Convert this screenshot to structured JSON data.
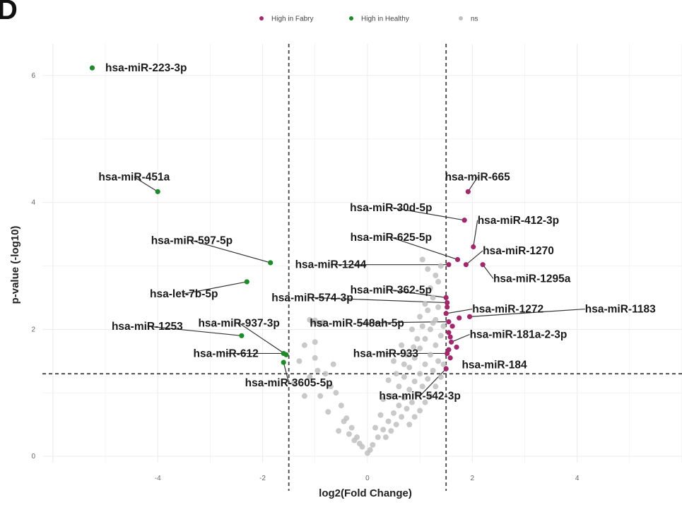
{
  "panel_letter": "D",
  "colors": {
    "high_fabry": "#a1286a",
    "high_healthy": "#1f8a2a",
    "ns": "#c0c0c0",
    "grid": "#ececec",
    "threshold": "#444444"
  },
  "chart_data": {
    "type": "scatter",
    "subtype": "volcano",
    "xlabel": "log2(Fold Change)",
    "ylabel": "p-value (-log10)",
    "xlim": [
      -6.2,
      6.0
    ],
    "ylim": [
      -0.1,
      6.5
    ],
    "x_ticks": [
      -4,
      -2,
      0,
      2,
      4
    ],
    "x_tick_labels": [
      "-4",
      "-2",
      "0",
      "2",
      "4"
    ],
    "y_ticks": [
      0,
      2,
      4,
      6
    ],
    "y_tick_labels": [
      "0",
      "2",
      "4",
      "6"
    ],
    "grid": true,
    "legend_position": "top-center",
    "thresholds": {
      "log2fc": [
        -1.5,
        1.5
      ],
      "neg_log10_p": 1.3
    },
    "legend": [
      {
        "label": "High in Fabry",
        "color": "#a1286a"
      },
      {
        "label": "High in Healthy",
        "color": "#1f8a2a"
      },
      {
        "label": "ns",
        "color": "#c0c0c0"
      }
    ],
    "series": [
      {
        "name": "High in Healthy",
        "color": "#1f8a2a",
        "points": [
          {
            "x": -5.25,
            "y": 6.12,
            "label": "hsa-miR-223-3p"
          },
          {
            "x": -4.0,
            "y": 4.17,
            "label": "hsa-miR-451a"
          },
          {
            "x": -1.85,
            "y": 3.05,
            "label": "hsa-miR-597-5p"
          },
          {
            "x": -2.3,
            "y": 2.75,
            "label": "hsa-let-7b-5p"
          },
          {
            "x": -2.4,
            "y": 1.9,
            "label": "hsa-miR-1253"
          },
          {
            "x": -1.6,
            "y": 1.62,
            "label": "hsa-miR-612"
          },
          {
            "x": -1.55,
            "y": 1.6,
            "label": "hsa-miR-937-3p"
          },
          {
            "x": -1.6,
            "y": 1.48,
            "label": "hsa-miR-3605-5p"
          }
        ]
      },
      {
        "name": "High in Fabry",
        "color": "#a1286a",
        "points": [
          {
            "x": 1.92,
            "y": 4.17,
            "label": "hsa-miR-665"
          },
          {
            "x": 1.85,
            "y": 3.72,
            "label": "hsa-miR-30d-5p"
          },
          {
            "x": 2.02,
            "y": 3.3,
            "label": "hsa-miR-412-3p"
          },
          {
            "x": 1.72,
            "y": 3.1,
            "label": "hsa-miR-625-5p"
          },
          {
            "x": 1.88,
            "y": 3.02,
            "label": "hsa-miR-1270"
          },
          {
            "x": 2.2,
            "y": 3.02,
            "label": "hsa-miR-1295a"
          },
          {
            "x": 1.55,
            "y": 3.02,
            "label": "hsa-miR-1244"
          },
          {
            "x": 1.5,
            "y": 2.5,
            "label": "hsa-miR-362-5p"
          },
          {
            "x": 1.52,
            "y": 2.42,
            "label": "hsa-miR-574-3p"
          },
          {
            "x": 1.5,
            "y": 2.25,
            "label": "hsa-miR-1272"
          },
          {
            "x": 1.95,
            "y": 2.2,
            "label": "hsa-miR-1183"
          },
          {
            "x": 1.55,
            "y": 2.12,
            "label": "hsa-miR-548ah-5p"
          },
          {
            "x": 1.6,
            "y": 1.8,
            "label": "hsa-miR-181a-2-3p"
          },
          {
            "x": 1.52,
            "y": 1.62,
            "label": "hsa-miR-933"
          },
          {
            "x": 1.58,
            "y": 1.55,
            "label": "hsa-miR-184"
          },
          {
            "x": 1.5,
            "y": 1.38,
            "label": "hsa-miR-542-3p"
          },
          {
            "x": 1.62,
            "y": 2.05,
            "label": ""
          },
          {
            "x": 1.55,
            "y": 1.95,
            "label": ""
          },
          {
            "x": 1.7,
            "y": 1.72,
            "label": ""
          },
          {
            "x": 1.52,
            "y": 2.35,
            "label": ""
          },
          {
            "x": 1.58,
            "y": 1.88,
            "label": ""
          },
          {
            "x": 1.75,
            "y": 2.18,
            "label": ""
          },
          {
            "x": 1.55,
            "y": 1.68,
            "label": ""
          }
        ]
      },
      {
        "name": "ns",
        "color": "#c0c0c0",
        "points": [
          {
            "x": -1.05,
            "y": 2.12
          },
          {
            "x": -0.95,
            "y": 2.1
          },
          {
            "x": -1.1,
            "y": 2.15
          },
          {
            "x": -0.9,
            "y": 2.08
          },
          {
            "x": -1.0,
            "y": 2.14
          },
          {
            "x": -0.85,
            "y": 2.11
          },
          {
            "x": -1.2,
            "y": 1.75
          },
          {
            "x": -1.0,
            "y": 1.55
          },
          {
            "x": -0.8,
            "y": 1.3
          },
          {
            "x": -0.6,
            "y": 1.0
          },
          {
            "x": -0.5,
            "y": 0.8
          },
          {
            "x": -0.4,
            "y": 0.6
          },
          {
            "x": -0.3,
            "y": 0.45
          },
          {
            "x": -0.2,
            "y": 0.3
          },
          {
            "x": -0.1,
            "y": 0.15
          },
          {
            "x": 0.0,
            "y": 0.05
          },
          {
            "x": 0.05,
            "y": 0.1
          },
          {
            "x": -0.15,
            "y": 0.2
          },
          {
            "x": -0.35,
            "y": 0.35
          },
          {
            "x": -0.7,
            "y": 1.1
          },
          {
            "x": -1.3,
            "y": 1.5
          },
          {
            "x": -1.1,
            "y": 1.25
          },
          {
            "x": -0.9,
            "y": 0.95
          },
          {
            "x": -0.45,
            "y": 0.55
          },
          {
            "x": -0.25,
            "y": 0.25
          },
          {
            "x": -1.4,
            "y": 1.15
          },
          {
            "x": -1.2,
            "y": 0.95
          },
          {
            "x": -0.75,
            "y": 0.7
          },
          {
            "x": -0.55,
            "y": 0.4
          },
          {
            "x": -1.0,
            "y": 1.8
          },
          {
            "x": -0.65,
            "y": 1.45
          },
          {
            "x": -0.95,
            "y": 1.35
          },
          {
            "x": 0.1,
            "y": 0.18
          },
          {
            "x": 0.2,
            "y": 0.3
          },
          {
            "x": 0.3,
            "y": 0.42
          },
          {
            "x": 0.4,
            "y": 0.55
          },
          {
            "x": 0.5,
            "y": 0.68
          },
          {
            "x": 0.6,
            "y": 0.8
          },
          {
            "x": 0.7,
            "y": 0.92
          },
          {
            "x": 0.8,
            "y": 1.05
          },
          {
            "x": 0.9,
            "y": 1.18
          },
          {
            "x": 1.0,
            "y": 1.3
          },
          {
            "x": 1.1,
            "y": 1.45
          },
          {
            "x": 1.2,
            "y": 1.6
          },
          {
            "x": 1.3,
            "y": 1.75
          },
          {
            "x": 1.4,
            "y": 1.9
          },
          {
            "x": 0.35,
            "y": 0.3
          },
          {
            "x": 0.45,
            "y": 0.4
          },
          {
            "x": 0.55,
            "y": 0.5
          },
          {
            "x": 0.65,
            "y": 0.62
          },
          {
            "x": 0.75,
            "y": 0.75
          },
          {
            "x": 0.85,
            "y": 0.85
          },
          {
            "x": 0.95,
            "y": 0.98
          },
          {
            "x": 1.05,
            "y": 1.1
          },
          {
            "x": 1.15,
            "y": 1.22
          },
          {
            "x": 1.25,
            "y": 1.35
          },
          {
            "x": 1.35,
            "y": 1.5
          },
          {
            "x": 0.6,
            "y": 1.1
          },
          {
            "x": 0.7,
            "y": 1.25
          },
          {
            "x": 0.8,
            "y": 1.4
          },
          {
            "x": 0.9,
            "y": 1.55
          },
          {
            "x": 1.0,
            "y": 1.7
          },
          {
            "x": 1.1,
            "y": 1.85
          },
          {
            "x": 1.2,
            "y": 2.0
          },
          {
            "x": 1.3,
            "y": 2.15
          },
          {
            "x": 0.55,
            "y": 1.3
          },
          {
            "x": 0.75,
            "y": 1.6
          },
          {
            "x": 0.95,
            "y": 1.85
          },
          {
            "x": 1.05,
            "y": 2.05
          },
          {
            "x": 1.15,
            "y": 2.3
          },
          {
            "x": 1.25,
            "y": 2.5
          },
          {
            "x": 1.0,
            "y": 2.2
          },
          {
            "x": 1.1,
            "y": 2.4
          },
          {
            "x": 1.2,
            "y": 2.65
          },
          {
            "x": 1.3,
            "y": 2.85
          },
          {
            "x": 1.4,
            "y": 3.0
          },
          {
            "x": 1.05,
            "y": 3.1
          },
          {
            "x": 1.15,
            "y": 2.95
          },
          {
            "x": 1.35,
            "y": 2.75
          },
          {
            "x": 0.85,
            "y": 2.0
          },
          {
            "x": 0.65,
            "y": 1.75
          },
          {
            "x": 0.5,
            "y": 1.5
          },
          {
            "x": 0.4,
            "y": 1.2
          },
          {
            "x": 0.3,
            "y": 0.9
          },
          {
            "x": 0.25,
            "y": 0.65
          },
          {
            "x": 0.15,
            "y": 0.45
          },
          {
            "x": 1.45,
            "y": 2.05
          },
          {
            "x": 1.45,
            "y": 1.45
          },
          {
            "x": 1.4,
            "y": 1.25
          },
          {
            "x": 1.3,
            "y": 1.1
          },
          {
            "x": 1.2,
            "y": 0.95
          },
          {
            "x": 1.1,
            "y": 0.85
          },
          {
            "x": 1.0,
            "y": 0.72
          },
          {
            "x": 0.9,
            "y": 0.62
          },
          {
            "x": 0.8,
            "y": 0.5
          },
          {
            "x": 1.35,
            "y": 2.35
          },
          {
            "x": 1.25,
            "y": 2.1
          },
          {
            "x": 0.45,
            "y": 0.95
          },
          {
            "x": 0.7,
            "y": 1.45
          },
          {
            "x": 0.88,
            "y": 1.72
          }
        ]
      }
    ],
    "labels": [
      {
        "text": "hsa-miR-223-3p",
        "point": [
          -5.25,
          6.12
        ],
        "at": [
          -5.0,
          6.12
        ],
        "anchor": "start"
      },
      {
        "text": "hsa-miR-451a",
        "point": [
          -4.0,
          4.17
        ],
        "at": [
          -4.45,
          4.4
        ],
        "anchor": "middle"
      },
      {
        "text": "hsa-miR-597-5p",
        "point": [
          -1.85,
          3.05
        ],
        "at": [
          -3.35,
          3.4
        ],
        "anchor": "middle"
      },
      {
        "text": "hsa-let-7b-5p",
        "point": [
          -2.3,
          2.75
        ],
        "at": [
          -3.5,
          2.56
        ],
        "anchor": "middle"
      },
      {
        "text": "hsa-miR-1253",
        "point": [
          -2.4,
          1.9
        ],
        "at": [
          -4.2,
          2.05
        ],
        "anchor": "middle"
      },
      {
        "text": "hsa-miR-937-3p",
        "point": [
          -1.55,
          1.6
        ],
        "at": [
          -2.45,
          2.1
        ],
        "anchor": "middle"
      },
      {
        "text": "hsa-miR-612",
        "point": [
          -1.6,
          1.62
        ],
        "at": [
          -2.7,
          1.62
        ],
        "anchor": "middle"
      },
      {
        "text": "hsa-miR-3605-5p",
        "point": [
          -1.6,
          1.48
        ],
        "at": [
          -1.5,
          1.16
        ],
        "anchor": "middle"
      },
      {
        "text": "hsa-miR-1244",
        "point": [
          1.55,
          3.02
        ],
        "at": [
          -0.7,
          3.02
        ],
        "anchor": "middle"
      },
      {
        "text": "hsa-miR-574-3p",
        "point": [
          1.52,
          2.42
        ],
        "at": [
          -1.05,
          2.5
        ],
        "anchor": "middle"
      },
      {
        "text": "hsa-miR-548ah-5p",
        "point": [
          1.55,
          2.12
        ],
        "at": [
          -0.2,
          2.1
        ],
        "anchor": "middle"
      },
      {
        "text": "hsa-miR-665",
        "point": [
          1.92,
          4.17
        ],
        "at": [
          2.1,
          4.4
        ],
        "anchor": "middle"
      },
      {
        "text": "hsa-miR-30d-5p",
        "point": [
          1.85,
          3.72
        ],
        "at": [
          0.45,
          3.92
        ],
        "anchor": "middle"
      },
      {
        "text": "hsa-miR-412-3p",
        "point": [
          2.02,
          3.3
        ],
        "at": [
          2.1,
          3.72
        ],
        "anchor": "start"
      },
      {
        "text": "hsa-miR-625-5p",
        "point": [
          1.72,
          3.1
        ],
        "at": [
          0.45,
          3.45
        ],
        "anchor": "middle"
      },
      {
        "text": "hsa-miR-1270",
        "point": [
          1.88,
          3.02
        ],
        "at": [
          2.2,
          3.24
        ],
        "anchor": "start"
      },
      {
        "text": "hsa-miR-1295a",
        "point": [
          2.2,
          3.02
        ],
        "at": [
          2.4,
          2.8
        ],
        "anchor": "start"
      },
      {
        "text": "hsa-miR-362-5p",
        "point": [
          1.5,
          2.5
        ],
        "at": [
          0.45,
          2.62
        ],
        "anchor": "middle"
      },
      {
        "text": "hsa-miR-1272",
        "point": [
          1.5,
          2.25
        ],
        "at": [
          2.0,
          2.32
        ],
        "anchor": "start"
      },
      {
        "text": "hsa-miR-1183",
        "point": [
          1.95,
          2.2
        ],
        "at": [
          4.15,
          2.32
        ],
        "anchor": "start"
      },
      {
        "text": "hsa-miR-181a-2-3p",
        "point": [
          1.6,
          1.8
        ],
        "at": [
          1.95,
          1.92
        ],
        "anchor": "start"
      },
      {
        "text": "hsa-miR-933",
        "point": [
          1.52,
          1.62
        ],
        "at": [
          0.35,
          1.62
        ],
        "anchor": "middle"
      },
      {
        "text": "hsa-miR-184",
        "point": [
          1.58,
          1.55
        ],
        "at": [
          1.8,
          1.44
        ],
        "anchor": "start"
      },
      {
        "text": "hsa-miR-542-3p",
        "point": [
          1.5,
          1.38
        ],
        "at": [
          1.0,
          0.95
        ],
        "anchor": "middle"
      }
    ]
  }
}
